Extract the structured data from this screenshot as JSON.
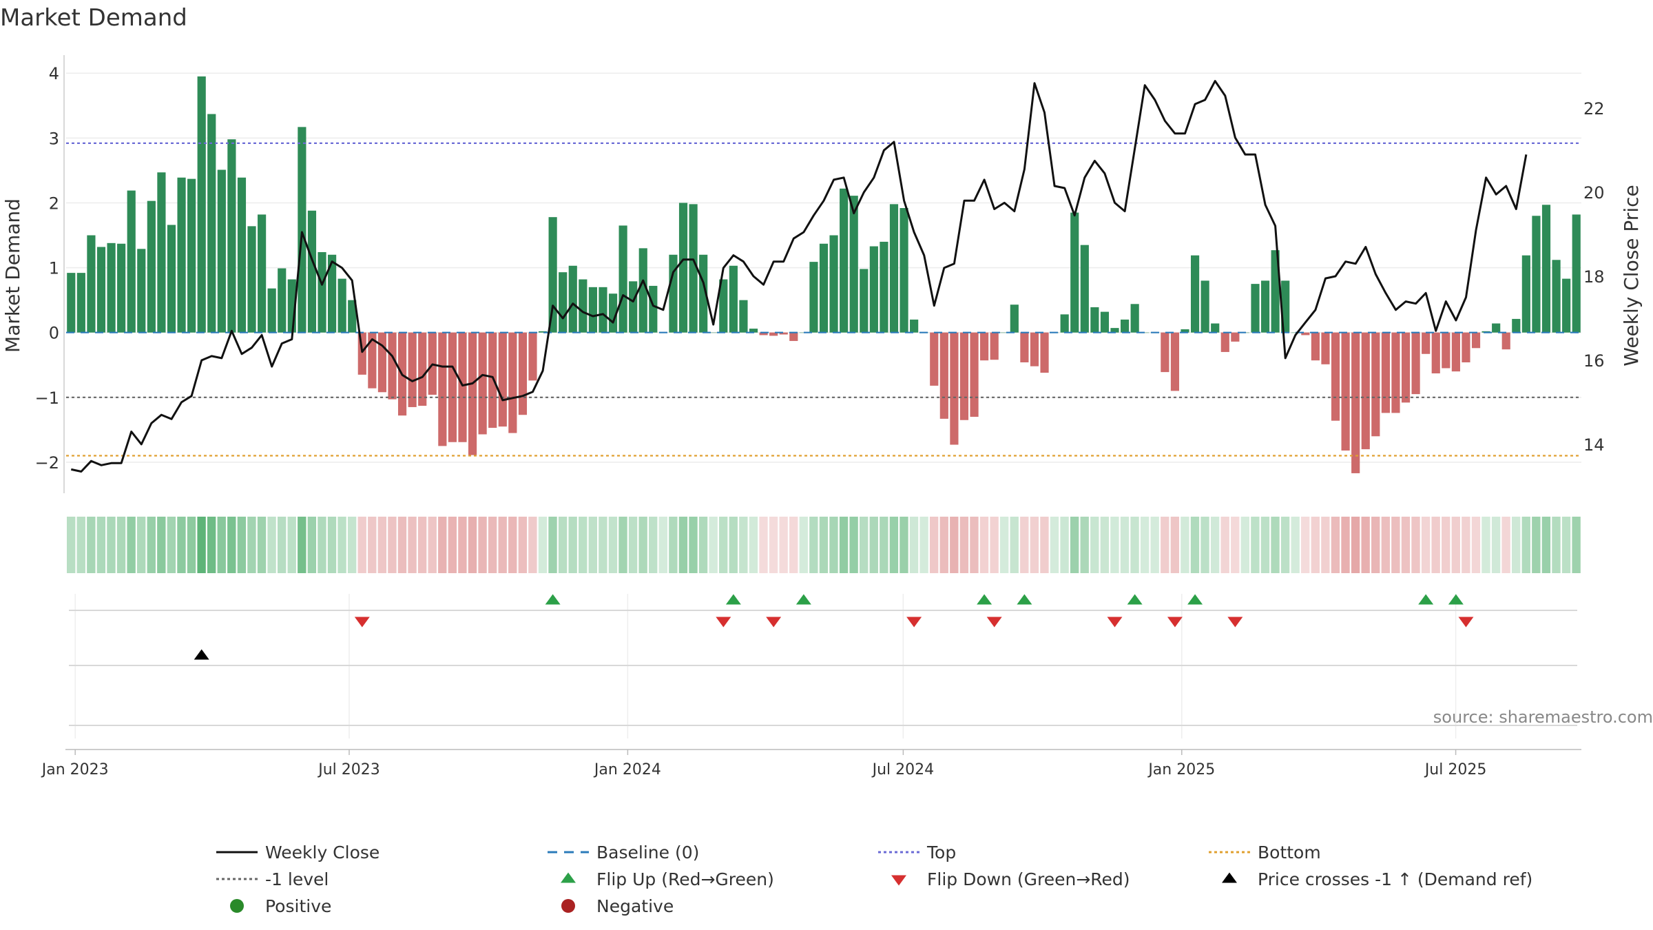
{
  "chart_data": {
    "type": "bar",
    "title": "Market Demand",
    "ylabel": "Market Demand",
    "y2label": "Weekly Close Price",
    "ylim": [
      -2.5,
      4.3
    ],
    "y2lim": [
      12.8,
      23.3
    ],
    "yticks": [
      "4",
      "3",
      "2",
      "1",
      "0",
      "−1",
      "−2"
    ],
    "ytick_values": [
      4,
      3,
      2,
      1,
      0,
      -1,
      -2
    ],
    "y2ticks": [
      "22",
      "20",
      "18",
      "16",
      "14"
    ],
    "y2tick_values": [
      22,
      20,
      18,
      16,
      14
    ],
    "x_start": "2022-12-26",
    "x_end": "2025-09-22",
    "xticks": [
      "Jan 2023",
      "Jul 2023",
      "Jan 2024",
      "Jul 2024",
      "Jan 2025",
      "Jul 2025"
    ],
    "xtick_dates": [
      "2023-01-01",
      "2023-07-01",
      "2024-01-01",
      "2024-07-01",
      "2025-01-01",
      "2025-07-01"
    ],
    "reference_levels": {
      "baseline": 0,
      "top": 2.92,
      "minus_one": -1,
      "bottom": -1.9
    },
    "series": [
      {
        "name": "Market Demand",
        "type": "bar",
        "values": [
          0.92,
          0.92,
          1.5,
          1.32,
          1.38,
          1.37,
          2.19,
          1.29,
          2.03,
          2.47,
          1.66,
          2.39,
          2.37,
          3.95,
          3.37,
          2.51,
          2.98,
          2.39,
          1.64,
          1.82,
          0.68,
          0.99,
          0.82,
          3.17,
          1.88,
          1.24,
          1.2,
          0.83,
          0.5,
          -0.65,
          -0.86,
          -0.92,
          -1.03,
          -1.28,
          -1.15,
          -1.13,
          -0.96,
          -1.75,
          -1.69,
          -1.69,
          -1.89,
          -1.57,
          -1.47,
          -1.45,
          -1.55,
          -1.27,
          -0.74,
          0.02,
          1.78,
          0.93,
          1.03,
          0.82,
          0.7,
          0.7,
          0.6,
          1.65,
          0.79,
          1.3,
          0.72,
          0.0,
          1.2,
          2.0,
          1.98,
          1.2,
          0.0,
          0.82,
          1.03,
          0.5,
          0.06,
          -0.04,
          -0.05,
          -0.03,
          -0.13,
          0.0,
          1.09,
          1.37,
          1.5,
          2.22,
          2.11,
          0.98,
          1.33,
          1.4,
          1.98,
          1.92,
          0.2,
          0.0,
          -0.82,
          -1.33,
          -1.73,
          -1.35,
          -1.3,
          -0.43,
          -0.42,
          0.0,
          0.43,
          -0.46,
          -0.52,
          -0.62,
          0.0,
          0.28,
          1.85,
          1.35,
          0.39,
          0.32,
          0.07,
          0.2,
          0.44,
          0.0,
          0.0,
          -0.61,
          -0.9,
          0.05,
          1.19,
          0.8,
          0.14,
          -0.3,
          -0.14,
          0.0,
          0.75,
          0.8,
          1.27,
          0.8,
          0.0,
          -0.04,
          -0.43,
          -0.49,
          -1.36,
          -1.82,
          -2.17,
          -1.8,
          -1.6,
          -1.24,
          -1.24,
          -1.08,
          -0.95,
          -0.33,
          -0.63,
          -0.55,
          -0.6,
          -0.46,
          -0.24,
          0.02,
          0.14,
          -0.26,
          0.21,
          1.19,
          1.8,
          1.97,
          1.12,
          0.83,
          1.82
        ]
      },
      {
        "name": "Weekly Close",
        "type": "line",
        "axis": "right",
        "values": [
          13.4,
          13.35,
          13.6,
          13.5,
          13.55,
          13.55,
          14.3,
          14.0,
          14.5,
          14.7,
          14.6,
          15.0,
          15.15,
          16.0,
          16.1,
          16.05,
          16.7,
          16.15,
          16.3,
          16.6,
          15.85,
          16.4,
          16.5,
          19.05,
          18.4,
          17.8,
          18.35,
          18.2,
          17.9,
          16.2,
          16.5,
          16.35,
          16.1,
          15.65,
          15.5,
          15.6,
          15.9,
          15.85,
          15.85,
          15.4,
          15.45,
          15.65,
          15.6,
          15.05,
          15.1,
          15.15,
          15.25,
          15.75,
          17.3,
          17.0,
          17.35,
          17.15,
          17.05,
          17.1,
          16.9,
          17.55,
          17.4,
          17.9,
          17.3,
          17.2,
          18.1,
          18.4,
          18.4,
          17.85,
          16.85,
          18.2,
          18.5,
          18.35,
          18.0,
          17.8,
          18.35,
          18.35,
          18.9,
          19.05,
          19.45,
          19.8,
          20.3,
          20.35,
          19.5,
          20.0,
          20.35,
          21.0,
          21.2,
          19.8,
          19.05,
          18.5,
          17.3,
          18.2,
          18.3,
          19.8,
          19.8,
          20.3,
          19.6,
          19.75,
          19.55,
          20.55,
          22.6,
          21.9,
          20.15,
          20.1,
          19.45,
          20.35,
          20.75,
          20.45,
          19.75,
          19.55,
          21.05,
          22.55,
          22.2,
          21.7,
          21.4,
          21.4,
          22.1,
          22.2,
          22.65,
          22.3,
          21.3,
          20.9,
          20.9,
          19.7,
          19.2,
          16.05,
          16.6,
          16.9,
          17.2,
          17.95,
          18.0,
          18.35,
          18.3,
          18.7,
          18.05,
          17.6,
          17.2,
          17.4,
          17.35,
          17.6,
          16.7,
          17.4,
          16.95,
          17.5,
          19.1,
          20.35,
          19.95,
          20.15,
          19.6,
          20.9
        ],
        "color": "#111111"
      }
    ],
    "markers": {
      "flip_up_weeks": [
        48,
        66,
        73,
        91,
        95,
        106,
        112,
        135,
        138
      ],
      "flip_down_weeks": [
        29,
        65,
        70,
        84,
        92,
        104,
        110,
        116,
        139
      ],
      "price_cross_up_weeks": [
        13
      ]
    },
    "legend": [
      {
        "label": "Weekly Close",
        "symbol": "line",
        "color": "#111111"
      },
      {
        "label": "Baseline (0)",
        "symbol": "dash",
        "color": "#2b7bba"
      },
      {
        "label": "Top",
        "symbol": "dots",
        "color": "#6b6bd6"
      },
      {
        "label": "Bottom",
        "symbol": "dots",
        "color": "#e0a030"
      },
      {
        "label": "-1 level",
        "symbol": "dots",
        "color": "#666666"
      },
      {
        "label": "Flip Up (Red→Green)",
        "symbol": "triangle-up",
        "color": "#2ca048"
      },
      {
        "label": "Flip Down (Green→Red)",
        "symbol": "triangle-down",
        "color": "#d62f2f"
      },
      {
        "label": "Price crosses -1 ↑ (Demand ref)",
        "symbol": "triangle-up",
        "color": "#000000"
      },
      {
        "label": "Positive",
        "symbol": "circle",
        "color": "#2a8a2a"
      },
      {
        "label": "Negative",
        "symbol": "circle",
        "color": "#aa2222"
      }
    ],
    "legend_position": "bottom"
  },
  "source_note": "source: sharemaestro.com",
  "colors": {
    "positive": "#2e8b57",
    "negative": "#cd6a6a",
    "top": "#6b6bd6",
    "bottom": "#e0a030",
    "minus_one": "#666666",
    "baseline": "#2b7bba",
    "flip_up": "#2ca048",
    "flip_down": "#d62f2f"
  }
}
